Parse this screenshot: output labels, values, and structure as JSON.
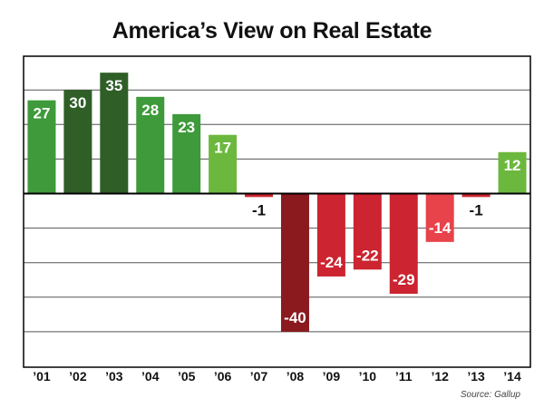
{
  "chart_data": {
    "type": "bar",
    "title": "America’s View on Real Estate",
    "categories": [
      "’01",
      "’02",
      "’03",
      "’04",
      "’05",
      "’06",
      "’07",
      "’08",
      "’09",
      "’10",
      "’11",
      "’12",
      "’13",
      "’14"
    ],
    "values": [
      27,
      30,
      35,
      28,
      23,
      17,
      -1,
      -40,
      -24,
      -22,
      -29,
      -14,
      -1,
      12
    ],
    "value_labels": [
      "27",
      "30",
      "35",
      "28",
      "23",
      "17",
      "-1",
      "-40",
      "-24",
      "-22",
      "-29",
      "-14",
      "-1",
      "12"
    ],
    "bar_colors": [
      "#3e9a3a",
      "#2f5e27",
      "#2f5e27",
      "#3e9a3a",
      "#3e9a3a",
      "#6cb83e",
      "#cc2430",
      "#8a1a1e",
      "#cc2430",
      "#cc2430",
      "#cc2430",
      "#e8424a",
      "#cc2430",
      "#6cb83e"
    ],
    "ylim": [
      -40,
      35
    ],
    "gridlines": [
      30,
      20,
      10,
      0,
      -10,
      -20,
      -30,
      -40
    ],
    "grid": true,
    "xlabel": "",
    "ylabel": "",
    "source": "Source: Gallup"
  }
}
